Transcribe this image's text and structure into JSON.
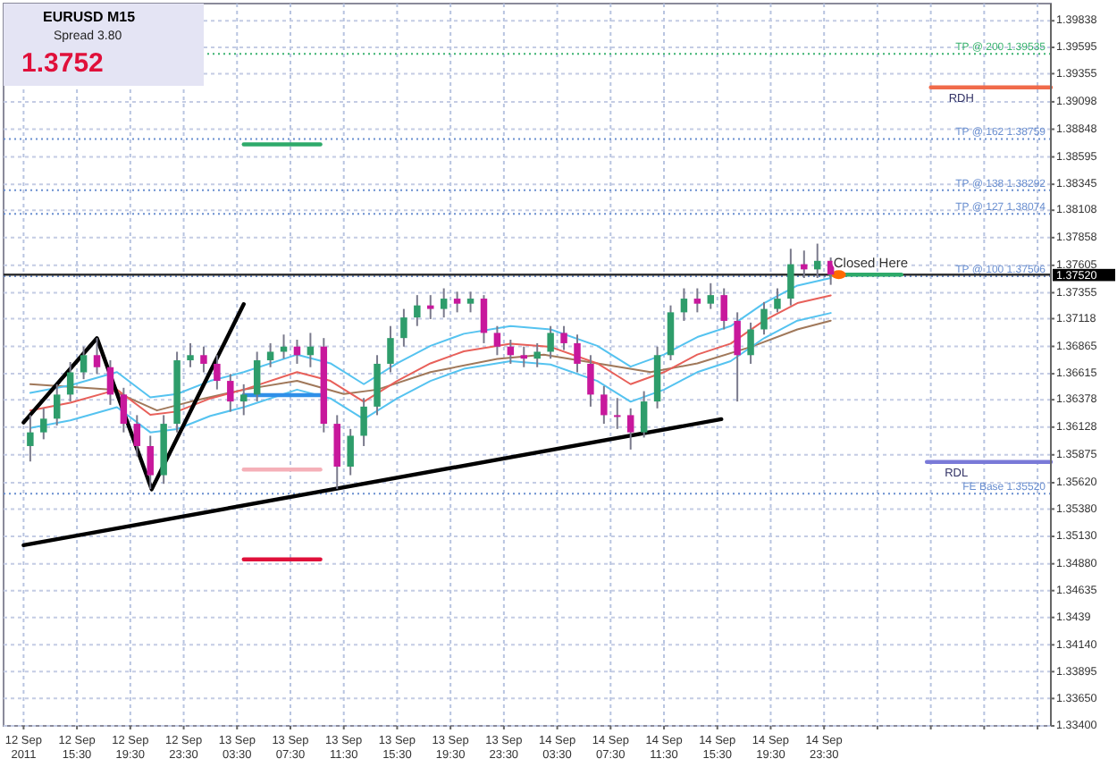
{
  "chart_data": {
    "type": "candlestick",
    "title": "EURUSD  M15",
    "subtitle": "Spread  3.80",
    "annotations": [
      "1.3752",
      {
        "text": "Closed Here",
        "x": "2011-09-15T03:00",
        "y": 1.37521
      }
    ],
    "x": [
      "2011-09-12T12:00",
      "2011-09-12T13:00",
      "2011-09-12T14:00",
      "2011-09-12T15:00",
      "2011-09-12T16:00",
      "2011-09-12T17:00",
      "2011-09-12T18:00",
      "2011-09-12T19:00",
      "2011-09-12T20:00",
      "2011-09-12T21:00",
      "2011-09-12T22:00",
      "2011-09-12T23:00",
      "2011-09-13T00:00",
      "2011-09-13T01:00",
      "2011-09-13T02:00",
      "2011-09-13T03:00",
      "2011-09-13T04:00",
      "2011-09-13T05:00",
      "2011-09-13T06:00",
      "2011-09-13T07:00",
      "2011-09-13T08:00",
      "2011-09-13T09:00",
      "2011-09-13T10:00",
      "2011-09-13T11:00",
      "2011-09-13T12:00",
      "2011-09-13T13:00",
      "2011-09-13T14:00",
      "2011-09-13T15:00",
      "2011-09-13T16:00",
      "2011-09-13T17:00",
      "2011-09-13T18:00",
      "2011-09-13T19:00",
      "2011-09-13T20:00",
      "2011-09-13T21:00",
      "2011-09-13T22:00",
      "2011-09-13T23:00",
      "2011-09-14T00:00",
      "2011-09-14T01:00",
      "2011-09-14T02:00",
      "2011-09-14T03:00",
      "2011-09-14T04:00",
      "2011-09-14T05:00",
      "2011-09-14T06:00",
      "2011-09-14T07:00",
      "2011-09-14T08:00",
      "2011-09-14T09:00",
      "2011-09-14T10:00",
      "2011-09-14T11:00",
      "2011-09-14T12:00",
      "2011-09-14T13:00",
      "2011-09-14T14:00",
      "2011-09-14T15:00",
      "2011-09-14T16:00",
      "2011-09-14T17:00",
      "2011-09-14T18:00",
      "2011-09-14T19:00",
      "2011-09-14T20:00",
      "2011-09-14T21:00",
      "2011-09-14T22:00",
      "2011-09-14T23:00",
      "2011-09-15T00:00"
    ],
    "ohlc": [
      [
        1.35955,
        1.36237,
        1.35814,
        1.3608
      ],
      [
        1.3608,
        1.36299,
        1.36017,
        1.36205
      ],
      [
        1.36205,
        1.36519,
        1.36143,
        1.36425
      ],
      [
        1.36425,
        1.36722,
        1.36362,
        1.36628
      ],
      [
        1.36628,
        1.36863,
        1.36566,
        1.36785
      ],
      [
        1.36785,
        1.36941,
        1.36613,
        1.36675
      ],
      [
        1.36675,
        1.36738,
        1.36331,
        1.36425
      ],
      [
        1.36425,
        1.36487,
        1.3608,
        1.36158
      ],
      [
        1.36158,
        1.36237,
        1.35861,
        1.35955
      ],
      [
        1.35955,
        1.36049,
        1.35563,
        1.35689
      ],
      [
        1.35689,
        1.36237,
        1.3561,
        1.36158
      ],
      [
        1.36158,
        1.36816,
        1.3608,
        1.36738
      ],
      [
        1.36738,
        1.36894,
        1.36675,
        1.36785
      ],
      [
        1.36785,
        1.36863,
        1.36628,
        1.36706
      ],
      [
        1.36706,
        1.36785,
        1.36472,
        1.3655
      ],
      [
        1.3655,
        1.36613,
        1.36268,
        1.36362
      ],
      [
        1.36362,
        1.36519,
        1.36237,
        1.36425
      ],
      [
        1.36425,
        1.36816,
        1.36362,
        1.36738
      ],
      [
        1.36738,
        1.36894,
        1.36675,
        1.36816
      ],
      [
        1.36816,
        1.36973,
        1.36753,
        1.36863
      ],
      [
        1.36863,
        1.36926,
        1.36706,
        1.36785
      ],
      [
        1.36785,
        1.36988,
        1.36675,
        1.36863
      ],
      [
        1.36863,
        1.36941,
        1.3608,
        1.36158
      ],
      [
        1.36158,
        1.36237,
        1.35563,
        1.35767
      ],
      [
        1.35767,
        1.36111,
        1.35689,
        1.36049
      ],
      [
        1.36049,
        1.36393,
        1.35955,
        1.36315
      ],
      [
        1.36315,
        1.36785,
        1.36237,
        1.36706
      ],
      [
        1.36706,
        1.37051,
        1.36628,
        1.36941
      ],
      [
        1.36941,
        1.37207,
        1.36863,
        1.37129
      ],
      [
        1.37129,
        1.37333,
        1.37051,
        1.37239
      ],
      [
        1.37239,
        1.37333,
        1.37114,
        1.37207
      ],
      [
        1.37207,
        1.37395,
        1.37129,
        1.37301
      ],
      [
        1.37301,
        1.37364,
        1.37176,
        1.37255
      ],
      [
        1.37255,
        1.37364,
        1.37176,
        1.37301
      ],
      [
        1.37301,
        1.37333,
        1.36894,
        1.36988
      ],
      [
        1.36988,
        1.37051,
        1.36785,
        1.36863
      ],
      [
        1.36863,
        1.36926,
        1.36706,
        1.36785
      ],
      [
        1.36785,
        1.36863,
        1.36675,
        1.36753
      ],
      [
        1.36753,
        1.36894,
        1.36675,
        1.36816
      ],
      [
        1.36816,
        1.37051,
        1.36753,
        1.36988
      ],
      [
        1.36988,
        1.37051,
        1.36832,
        1.36894
      ],
      [
        1.36894,
        1.36973,
        1.36628,
        1.36706
      ],
      [
        1.36706,
        1.36785,
        1.36315,
        1.36425
      ],
      [
        1.36425,
        1.36503,
        1.36158,
        1.36237
      ],
      [
        1.36237,
        1.36393,
        1.36111,
        1.36237
      ],
      [
        1.36237,
        1.36299,
        1.35923,
        1.3608
      ],
      [
        1.3608,
        1.36456,
        1.36033,
        1.36362
      ],
      [
        1.36362,
        1.36863,
        1.36299,
        1.36785
      ],
      [
        1.36785,
        1.37239,
        1.36738,
        1.37176
      ],
      [
        1.37176,
        1.37395,
        1.37098,
        1.37301
      ],
      [
        1.37301,
        1.37395,
        1.37176,
        1.37255
      ],
      [
        1.37255,
        1.37442,
        1.37207,
        1.37333
      ],
      [
        1.37333,
        1.37395,
        1.3702,
        1.37098
      ],
      [
        1.37098,
        1.37176,
        1.36362,
        1.36785
      ],
      [
        1.36785,
        1.37082,
        1.36706,
        1.3702
      ],
      [
        1.3702,
        1.3727,
        1.36973,
        1.37207
      ],
      [
        1.37207,
        1.37395,
        1.37176,
        1.37301
      ],
      [
        1.37301,
        1.37756,
        1.37239,
        1.37615
      ],
      [
        1.37615,
        1.3774,
        1.37489,
        1.37568
      ],
      [
        1.37568,
        1.37803,
        1.37489,
        1.37646
      ],
      [
        1.37646,
        1.37677,
        1.37427,
        1.37521
      ]
    ],
    "colors": [
      "#2e9d6b",
      "#2e9d6b",
      "#2e9d6b",
      "#2e9d6b",
      "#2e9d6b",
      "#c8189c",
      "#c8189c",
      "#c8189c",
      "#c8189c",
      "#c8189c",
      "#2e9d6b",
      "#2e9d6b",
      "#2e9d6b",
      "#c8189c",
      "#c8189c",
      "#c8189c",
      "#2e9d6b",
      "#2e9d6b",
      "#2e9d6b",
      "#2e9d6b",
      "#c8189c",
      "#2e9d6b",
      "#c8189c",
      "#c8189c",
      "#2e9d6b",
      "#2e9d6b",
      "#2e9d6b",
      "#2e9d6b",
      "#2e9d6b",
      "#2e9d6b",
      "#c8189c",
      "#2e9d6b",
      "#c8189c",
      "#2e9d6b",
      "#c8189c",
      "#c8189c",
      "#c8189c",
      "#c8189c",
      "#2e9d6b",
      "#2e9d6b",
      "#c8189c",
      "#c8189c",
      "#c8189c",
      "#c8189c",
      "#c8189c",
      "#c8189c",
      "#2e9d6b",
      "#2e9d6b",
      "#2e9d6b",
      "#2e9d6b",
      "#c8189c",
      "#2e9d6b",
      "#c8189c",
      "#c8189c",
      "#2e9d6b",
      "#2e9d6b",
      "#2e9d6b",
      "#2e9d6b",
      "#c8189c",
      "#2e9d6b",
      "#c8189c"
    ],
    "series": [
      {
        "type": "line",
        "color": "#a0785a",
        "x": [
          "2011-09-12T12:00",
          "2011-09-12T18:00",
          "2011-09-12T21:30",
          "2011-09-13T00:00",
          "2011-09-13T04:00",
          "2011-09-13T08:00",
          "2011-09-13T11:30",
          "2011-09-13T14:00",
          "2011-09-13T18:00",
          "2011-09-13T23:00",
          "2011-09-14T02:30",
          "2011-09-14T06:30",
          "2011-09-14T10:30",
          "2011-09-14T14:00",
          "2011-09-14T18:00",
          "2011-09-14T21:30",
          "2011-09-15T00:00"
        ],
        "values": [
          1.3652,
          1.3647,
          1.3628,
          1.3636,
          1.3647,
          1.3655,
          1.3643,
          1.3647,
          1.3663,
          1.3675,
          1.3679,
          1.3671,
          1.3663,
          1.3671,
          1.3686,
          1.3702,
          1.371
        ]
      },
      {
        "type": "line",
        "color": "#e8605a",
        "x": [
          "2011-09-12T12:00",
          "2011-09-12T15:00",
          "2011-09-12T18:30",
          "2011-09-12T21:00",
          "2011-09-12T23:00",
          "2011-09-13T01:30",
          "2011-09-13T04:00",
          "2011-09-13T08:00",
          "2011-09-13T10:30",
          "2011-09-13T13:00",
          "2011-09-13T15:30",
          "2011-09-13T18:00",
          "2011-09-13T20:30",
          "2011-09-14T00:00",
          "2011-09-14T03:00",
          "2011-09-14T06:30",
          "2011-09-14T09:00",
          "2011-09-14T11:30",
          "2011-09-14T14:00",
          "2011-09-14T16:30",
          "2011-09-14T19:00",
          "2011-09-14T21:30",
          "2011-09-15T00:00"
        ],
        "values": [
          1.3628,
          1.3635,
          1.3647,
          1.3624,
          1.3627,
          1.3639,
          1.3647,
          1.3663,
          1.3655,
          1.3636,
          1.3655,
          1.3671,
          1.3682,
          1.3689,
          1.3686,
          1.3671,
          1.3652,
          1.3663,
          1.3679,
          1.3689,
          1.371,
          1.3726,
          1.3733
        ]
      },
      {
        "type": "line",
        "color": "#55c3f0",
        "x": [
          "2011-09-12T12:00",
          "2011-09-12T15:00",
          "2011-09-12T18:30",
          "2011-09-12T21:00",
          "2011-09-12T23:00",
          "2011-09-13T01:30",
          "2011-09-13T04:00",
          "2011-09-13T08:00",
          "2011-09-13T10:30",
          "2011-09-13T13:00",
          "2011-09-13T15:30",
          "2011-09-13T18:00",
          "2011-09-13T20:30",
          "2011-09-14T00:00",
          "2011-09-14T03:00",
          "2011-09-14T06:30",
          "2011-09-14T09:00",
          "2011-09-14T11:30",
          "2011-09-14T14:00",
          "2011-09-14T16:30",
          "2011-09-14T19:00",
          "2011-09-14T21:30",
          "2011-09-15T00:00"
        ],
        "values": [
          1.3644,
          1.3651,
          1.3663,
          1.364,
          1.3643,
          1.3655,
          1.3663,
          1.3679,
          1.3671,
          1.3652,
          1.3671,
          1.3687,
          1.3698,
          1.3705,
          1.3702,
          1.3687,
          1.3668,
          1.3679,
          1.3695,
          1.3705,
          1.3726,
          1.3742,
          1.3749
        ]
      },
      {
        "type": "line",
        "color": "#55c3f0",
        "x": [
          "2011-09-12T12:00",
          "2011-09-12T15:00",
          "2011-09-12T18:30",
          "2011-09-12T21:00",
          "2011-09-12T23:00",
          "2011-09-13T01:30",
          "2011-09-13T04:00",
          "2011-09-13T08:00",
          "2011-09-13T10:30",
          "2011-09-13T13:00",
          "2011-09-13T15:30",
          "2011-09-13T18:00",
          "2011-09-13T20:30",
          "2011-09-14T00:00",
          "2011-09-14T03:00",
          "2011-09-14T06:30",
          "2011-09-14T09:00",
          "2011-09-14T11:30",
          "2011-09-14T14:00",
          "2011-09-14T16:30",
          "2011-09-14T19:00",
          "2011-09-14T21:30",
          "2011-09-15T00:00"
        ],
        "values": [
          1.3612,
          1.3619,
          1.3631,
          1.3608,
          1.3611,
          1.3623,
          1.3631,
          1.3647,
          1.3639,
          1.362,
          1.3639,
          1.3655,
          1.3666,
          1.3673,
          1.367,
          1.3655,
          1.3636,
          1.3647,
          1.3663,
          1.3673,
          1.3694,
          1.371,
          1.3717
        ]
      },
      {
        "type": "line",
        "color": "#000000",
        "x": [
          "2011-09-12T11:30",
          "2011-09-12T17:00",
          "2011-09-12T21:06",
          "2011-09-13T04:00"
        ],
        "values": [
          1.3617,
          1.3694,
          1.3556,
          1.3725
        ]
      },
      {
        "type": "line",
        "color": "#000000",
        "x": [
          "2011-09-12T11:30",
          "2011-09-14T15:48"
        ],
        "values": [
          1.3505,
          1.362
        ]
      },
      {
        "type": "line",
        "color": "#2eaa6a",
        "x": [
          "2011-09-13T04:00",
          "2011-09-13T09:45"
        ],
        "values": [
          1.3871,
          1.3871
        ]
      },
      {
        "type": "line",
        "color": "#2f8fe8",
        "x": [
          "2011-09-13T04:00",
          "2011-09-13T09:45"
        ],
        "values": [
          1.3642,
          1.3642
        ]
      },
      {
        "type": "line",
        "color": "#f5b0b8",
        "x": [
          "2011-09-13T04:00",
          "2011-09-13T09:45"
        ],
        "values": [
          1.3574,
          1.3574
        ]
      },
      {
        "type": "line",
        "color": "#e0103a",
        "x": [
          "2011-09-13T04:00",
          "2011-09-13T09:45"
        ],
        "values": [
          1.3492,
          1.3492
        ]
      },
      {
        "type": "line",
        "color": "#2eaa6a",
        "x": [
          "2011-09-15T00:00",
          "2011-09-15T05:18"
        ],
        "values": [
          1.3752,
          1.3752
        ]
      },
      {
        "type": "line",
        "name": "RDH",
        "color": "#f06a4a",
        "x": [
          "2011-09-15T07:30",
          "2011-09-15T16:30"
        ],
        "values": [
          1.3923,
          1.3923
        ]
      },
      {
        "type": "line",
        "name": "RDL",
        "color": "#7a7ad8",
        "x": [
          "2011-09-15T07:12",
          "2011-09-15T16:30"
        ],
        "values": [
          1.3581,
          1.3581
        ]
      },
      {
        "type": "scatter",
        "color": "#ff6a00",
        "x": [
          "2011-09-15T00:36"
        ],
        "values": [
          1.3752
        ]
      }
    ],
    "ref_lines": [
      {
        "axis": "y",
        "value": 1.39535,
        "label": "TP @ 200   1.39535",
        "color": "#3cb371",
        "line_style": "dotted"
      },
      {
        "axis": "y",
        "value": 1.38759,
        "label": "TP @ 162   1.38759",
        "color": "#6a8fd0",
        "line_style": "dotted"
      },
      {
        "axis": "y",
        "value": 1.38292,
        "label": "TP @ 138   1.38292",
        "color": "#6a8fd0",
        "line_style": "dotted"
      },
      {
        "axis": "y",
        "value": 1.38074,
        "label": "TP @ 127   1.38074",
        "color": "#6a8fd0",
        "line_style": "dotted"
      },
      {
        "axis": "y",
        "value": 1.37506,
        "label": "TP @ 100   1.37506",
        "color": "#6a8fd0",
        "line_style": "dotted"
      },
      {
        "axis": "y",
        "value": 1.3552,
        "label": "FE Base   1.35520",
        "color": "#6a8fd0",
        "line_style": "dotted"
      },
      {
        "axis": "y",
        "value": 1.3752,
        "label": "1.37520",
        "color": "#333333",
        "line_style": "solid"
      }
    ],
    "xlim": [
      "2011-09-12T10:00",
      "2011-09-15T16:30"
    ],
    "xticks": [
      {
        "value": "2011-09-12T11:30",
        "label": "12 Sep 2011"
      },
      {
        "value": "2011-09-12T15:30",
        "label": "12 Sep 15:30"
      },
      {
        "value": "2011-09-12T19:30",
        "label": "12 Sep 19:30"
      },
      {
        "value": "2011-09-12T23:30",
        "label": "12 Sep 23:30"
      },
      {
        "value": "2011-09-13T03:30",
        "label": "13 Sep 03:30"
      },
      {
        "value": "2011-09-13T07:30",
        "label": "13 Sep 07:30"
      },
      {
        "value": "2011-09-13T11:30",
        "label": "13 Sep 11:30"
      },
      {
        "value": "2011-09-13T15:30",
        "label": "13 Sep 15:30"
      },
      {
        "value": "2011-09-13T19:30",
        "label": "13 Sep 19:30"
      },
      {
        "value": "2011-09-13T23:30",
        "label": "13 Sep 23:30"
      },
      {
        "value": "2011-09-14T03:30",
        "label": "14 Sep 03:30"
      },
      {
        "value": "2011-09-14T07:30",
        "label": "14 Sep 07:30"
      },
      {
        "value": "2011-09-14T11:30",
        "label": "14 Sep 11:30"
      },
      {
        "value": "2011-09-14T15:30",
        "label": "14 Sep 15:30"
      },
      {
        "value": "2011-09-14T19:30",
        "label": "14 Sep 19:30"
      },
      {
        "value": "2011-09-14T23:30",
        "label": "14 Sep 23:30"
      },
      {
        "value": "2011-09-15T03:30",
        "label": null
      },
      {
        "value": "2011-09-15T07:30",
        "label": null
      },
      {
        "value": "2011-09-15T11:30",
        "label": null
      },
      {
        "value": "2011-09-15T15:30",
        "label": null
      }
    ],
    "ylim": [
      1.334,
      1.39995
    ],
    "yticks": [
      1.39838,
      1.39595,
      1.39355,
      1.39098,
      1.38848,
      1.38595,
      1.38345,
      1.38108,
      1.37858,
      1.37605,
      1.37355,
      1.37118,
      1.36865,
      1.36615,
      1.36378,
      1.36128,
      1.35875,
      {
        "value": 1.3562,
        "label": "1.35620"
      },
      {
        "value": 1.3538,
        "label": "1.35380"
      },
      {
        "value": 1.3513,
        "label": "1.35130"
      },
      {
        "value": 1.3488,
        "label": "1.34880"
      },
      1.34635,
      1.3439,
      {
        "value": 1.3414,
        "label": "1.34140"
      },
      1.33895,
      {
        "value": 1.3365,
        "label": "1.33650"
      },
      {
        "value": 1.334,
        "label": "1.33400"
      }
    ],
    "grid": true
  }
}
